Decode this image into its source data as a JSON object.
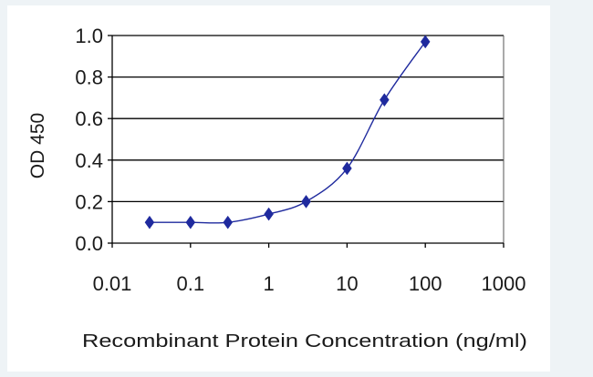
{
  "chart_data": {
    "type": "line",
    "title": "",
    "xlabel": "Recombinant Protein Concentration (ng/ml)",
    "ylabel": "OD 450",
    "x_scale": "log",
    "xlim": [
      0.01,
      1000
    ],
    "ylim": [
      0.0,
      1.0
    ],
    "x_ticks": [
      "0.01",
      "0.1",
      "1",
      "10",
      "100",
      "1000"
    ],
    "y_ticks": [
      "0.0",
      "0.2",
      "0.4",
      "0.6",
      "0.8",
      "1.0"
    ],
    "grid": "horizontal",
    "series": [
      {
        "x": [
          0.03,
          0.1,
          0.3,
          1,
          3,
          10,
          30,
          100
        ],
        "y": [
          0.1,
          0.1,
          0.1,
          0.14,
          0.2,
          0.36,
          0.69,
          0.97
        ]
      }
    ],
    "colors": {
      "series": "#1f2a9e",
      "grid": "#000000",
      "axis": "#000000"
    }
  }
}
